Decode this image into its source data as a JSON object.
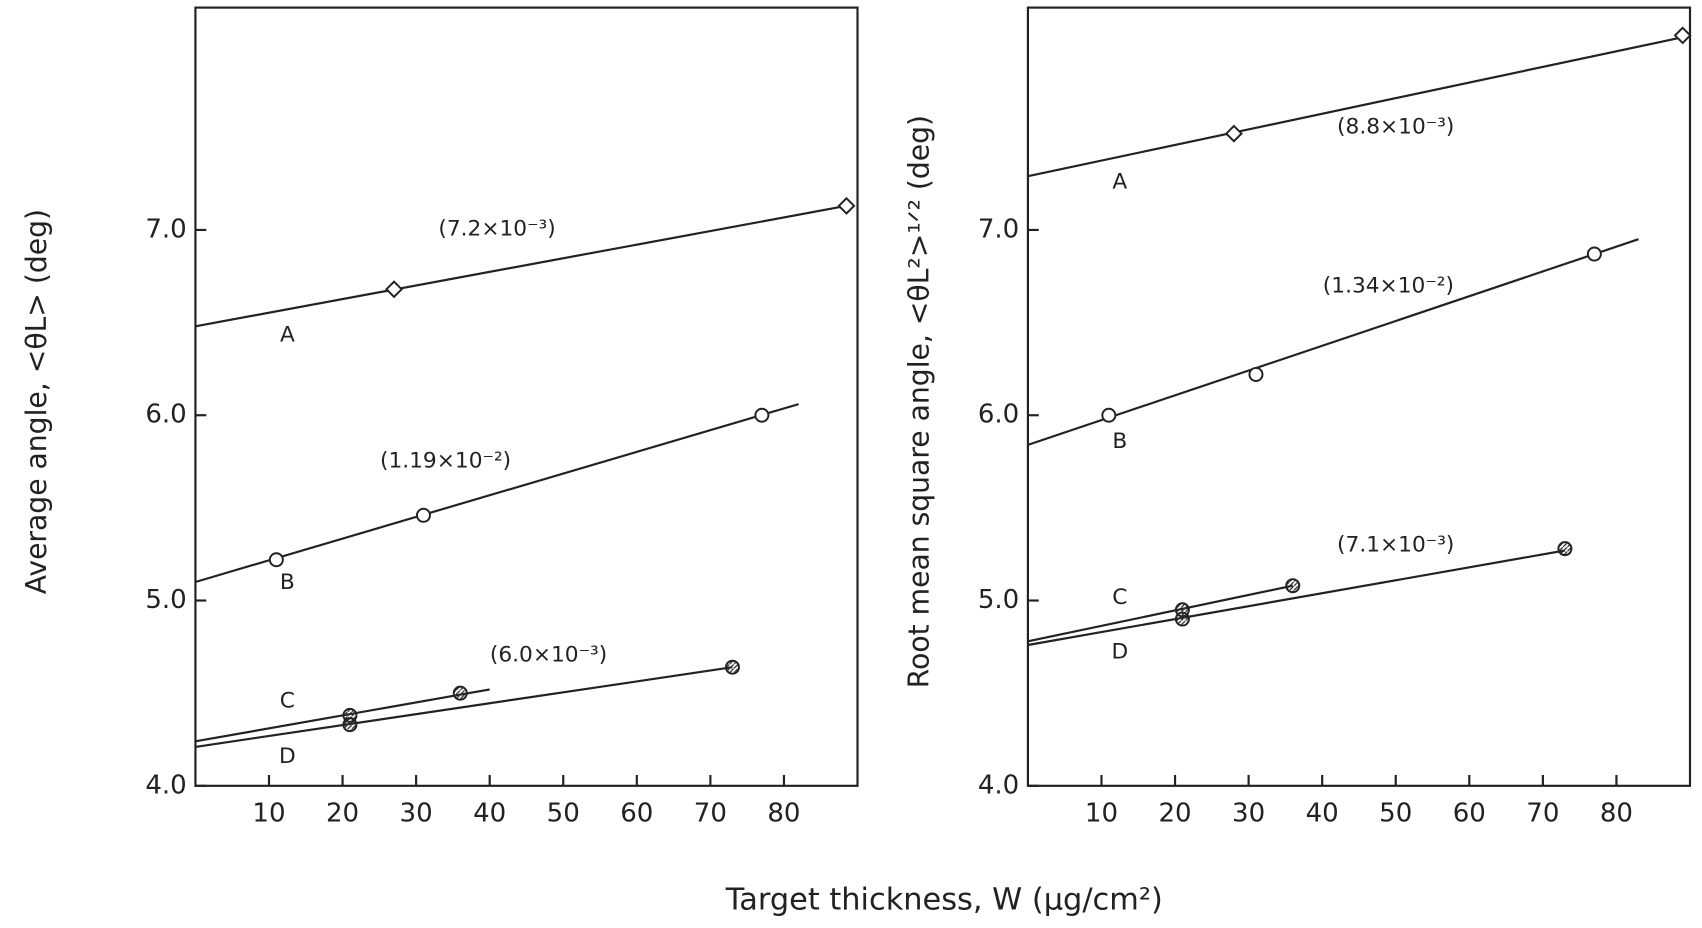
{
  "chart_data": [
    {
      "type": "scatter",
      "y_label": "Average angle, <θL> (deg)",
      "xlim": [
        0,
        90
      ],
      "ylim": [
        4,
        8.2
      ],
      "xticks": [
        10,
        20,
        30,
        40,
        50,
        60,
        70,
        80
      ],
      "yticks": [
        {
          "value": 4,
          "label": "4.0"
        },
        {
          "value": 5,
          "label": "5.0"
        },
        {
          "value": 6,
          "label": "6.0"
        },
        {
          "value": 7,
          "label": "7.0"
        }
      ],
      "series": [
        {
          "name": "A",
          "marker": "diamond",
          "x": [
            27,
            88.5
          ],
          "values": [
            6.68,
            7.13
          ],
          "fit": {
            "x": [
              0,
              88.5
            ],
            "values": [
              6.48,
              7.13
            ]
          },
          "annotation": "(7.2×10⁻³)"
        },
        {
          "name": "B",
          "marker": "circle",
          "x": [
            11,
            31,
            77
          ],
          "values": [
            5.22,
            5.46,
            6.0
          ],
          "fit": {
            "x": [
              0,
              82
            ],
            "values": [
              5.1,
              6.06
            ]
          },
          "annotation": "(1.19×10⁻²)"
        },
        {
          "name": "C",
          "marker": "hatched",
          "x": [
            21,
            36
          ],
          "values": [
            4.38,
            4.5
          ],
          "fit": {
            "x": [
              0,
              40
            ],
            "values": [
              4.24,
              4.52
            ]
          }
        },
        {
          "name": "D",
          "marker": "hatched",
          "x": [
            21,
            73
          ],
          "values": [
            4.33,
            4.64
          ],
          "fit": {
            "x": [
              0,
              73
            ],
            "values": [
              4.21,
              4.64
            ]
          },
          "annotation": "(6.0×10⁻³)"
        }
      ]
    },
    {
      "type": "scatter",
      "y_label": "Root mean square angle, <θL²>¹ᐟ² (deg)",
      "xlim": [
        0,
        90
      ],
      "ylim": [
        4,
        8.2
      ],
      "xticks": [
        10,
        20,
        30,
        40,
        50,
        60,
        70,
        80
      ],
      "yticks": [
        {
          "value": 4,
          "label": "4.0"
        },
        {
          "value": 5,
          "label": "5.0"
        },
        {
          "value": 6,
          "label": "6.0"
        },
        {
          "value": 7,
          "label": "7.0"
        }
      ],
      "series": [
        {
          "name": "A",
          "marker": "diamond",
          "x": [
            28,
            89
          ],
          "values": [
            7.52,
            8.05
          ],
          "fit": {
            "x": [
              0,
              89
            ],
            "values": [
              7.29,
              8.04
            ]
          },
          "annotation": "(8.8×10⁻³)"
        },
        {
          "name": "B",
          "marker": "circle",
          "x": [
            11,
            31,
            77
          ],
          "values": [
            6.0,
            6.22,
            6.87
          ],
          "fit": {
            "x": [
              0,
              83
            ],
            "values": [
              5.84,
              6.95
            ]
          },
          "annotation": "(1.34×10⁻²)"
        },
        {
          "name": "C",
          "marker": "hatched",
          "x": [
            21,
            36
          ],
          "values": [
            4.95,
            5.08
          ],
          "fit": {
            "x": [
              0,
              36
            ],
            "values": [
              4.78,
              5.08
            ]
          }
        },
        {
          "name": "D",
          "marker": "hatched",
          "x": [
            21,
            73
          ],
          "values": [
            4.9,
            5.28
          ],
          "fit": {
            "x": [
              0,
              73
            ],
            "values": [
              4.76,
              5.27
            ]
          },
          "annotation": "(7.1×10⁻³)"
        }
      ]
    }
  ],
  "x_label": "Target thickness, W (μg/cm²)"
}
